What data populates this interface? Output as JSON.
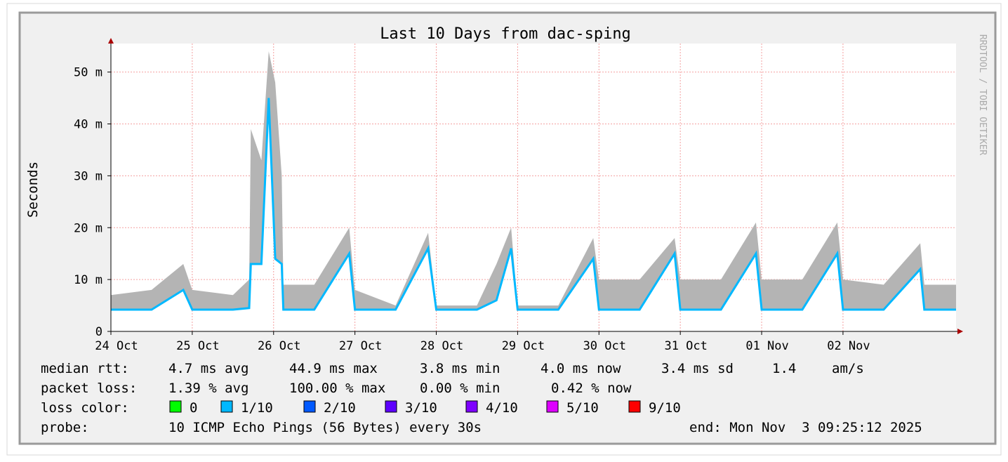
{
  "chart_data": {
    "type": "line",
    "title": "Last 10 Days from dac-sping",
    "y_label": "Seconds",
    "credit": "RRDTOOL / TOBI OETIKER",
    "x": [
      0,
      0.5,
      0.89,
      1.0,
      1.5,
      1.7,
      1.72,
      1.85,
      1.94,
      2.02,
      2.1,
      2.12,
      2.5,
      2.93,
      3.0,
      3.5,
      3.9,
      4.0,
      4.5,
      4.74,
      4.92,
      5.0,
      5.5,
      5.93,
      6.0,
      6.5,
      6.93,
      7.0,
      7.5,
      7.93,
      8.0,
      8.5,
      8.93,
      9.0,
      9.5,
      9.95,
      10.0,
      10.39
    ],
    "xlim": [
      0,
      10.39
    ],
    "xticks": [
      {
        "value": 0,
        "label": "24 Oct"
      },
      {
        "value": 1,
        "label": "25 Oct"
      },
      {
        "value": 2,
        "label": "26 Oct"
      },
      {
        "value": 3,
        "label": "27 Oct"
      },
      {
        "value": 4,
        "label": "28 Oct"
      },
      {
        "value": 5,
        "label": "29 Oct"
      },
      {
        "value": 6,
        "label": "30 Oct"
      },
      {
        "value": 7,
        "label": "31 Oct"
      },
      {
        "value": 8,
        "label": "01 Nov"
      },
      {
        "value": 9,
        "label": "02 Nov"
      }
    ],
    "ylim": [
      0,
      0.0555
    ],
    "yticks": [
      0,
      {
        "value": 0.01,
        "label": "10 m"
      },
      {
        "value": 0.02,
        "label": "20 m"
      },
      {
        "value": 0.03,
        "label": "30 m"
      },
      {
        "value": 0.04,
        "label": "40 m"
      },
      {
        "value": 0.05,
        "label": "50 m"
      }
    ],
    "grid": true,
    "series": [
      {
        "name": "median rtt:",
        "color": "#00b8ff",
        "values": [
          0.0042,
          0.0042,
          0.008,
          0.0042,
          0.0042,
          0.0045,
          0.013,
          0.013,
          0.045,
          0.014,
          0.013,
          0.0042,
          0.0042,
          0.015,
          0.0042,
          0.0042,
          0.016,
          0.0042,
          0.0042,
          0.006,
          0.016,
          0.0042,
          0.0042,
          0.014,
          0.0042,
          0.0042,
          0.015,
          0.0042,
          0.0042,
          0.015,
          0.0042,
          0.0042,
          0.015,
          0.0042,
          0.0042,
          0.012,
          0.0042,
          0.0042
        ]
      }
    ],
    "smoke": {
      "color": "#b4b4b4",
      "values": [
        0.007,
        0.008,
        0.013,
        0.008,
        0.007,
        0.01,
        0.039,
        0.033,
        0.054,
        0.048,
        0.03,
        0.009,
        0.009,
        0.02,
        0.008,
        0.005,
        0.019,
        0.005,
        0.005,
        0.013,
        0.02,
        0.005,
        0.005,
        0.018,
        0.01,
        0.01,
        0.018,
        0.01,
        0.01,
        0.021,
        0.01,
        0.01,
        0.021,
        0.01,
        0.009,
        0.017,
        0.009,
        0.009
      ]
    },
    "stats": [
      "4.7 ms avg",
      "44.9 ms max",
      "3.8 ms min",
      "4.0 ms now",
      "3.4 ms sd",
      "1.4",
      "am/s"
    ],
    "packet_loss_label": "packet loss:",
    "packet_loss": [
      "1.39 % avg",
      "100.00 % max",
      "0.00 % min",
      "0.42 % now"
    ],
    "loss_color_label": "loss color:",
    "loss_colors": [
      {
        "label": "0",
        "color": "#00ff00"
      },
      {
        "label": "1/10",
        "color": "#00b8ff"
      },
      {
        "label": "2/10",
        "color": "#0059ff"
      },
      {
        "label": "3/10",
        "color": "#5e00ff"
      },
      {
        "label": "4/10",
        "color": "#7e00ff"
      },
      {
        "label": "5/10",
        "color": "#dd00ff"
      },
      {
        "label": "9/10",
        "color": "#ff0000"
      }
    ],
    "probe_label": "probe:",
    "probe": "10 ICMP Echo Pings (56 Bytes) every 30s",
    "end": "end: Mon Nov  3 09:25:12 2025"
  }
}
